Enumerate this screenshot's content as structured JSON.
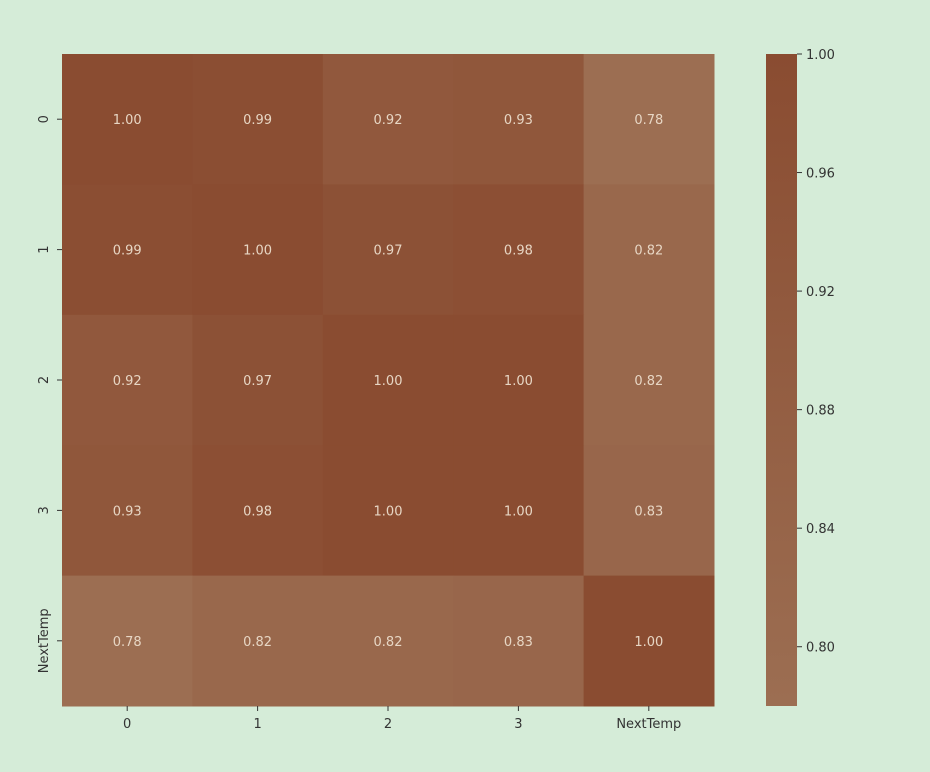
{
  "chart_data": {
    "type": "heatmap",
    "title": "",
    "xlabel": "",
    "ylabel": "",
    "x_categories": [
      "0",
      "1",
      "2",
      "3",
      "NextTemp"
    ],
    "y_categories": [
      "0",
      "1",
      "2",
      "3",
      "NextTemp"
    ],
    "values": [
      [
        1.0,
        0.99,
        0.92,
        0.93,
        0.78
      ],
      [
        0.99,
        1.0,
        0.97,
        0.98,
        0.82
      ],
      [
        0.92,
        0.97,
        1.0,
        1.0,
        0.82
      ],
      [
        0.93,
        0.98,
        1.0,
        1.0,
        0.83
      ],
      [
        0.78,
        0.82,
        0.82,
        0.83,
        1.0
      ]
    ],
    "value_format": "0.00",
    "colorbar": {
      "vmin": 0.78,
      "vmax": 1.0,
      "ticks": [
        "1.00",
        "0.96",
        "0.92",
        "0.88",
        "0.84",
        "0.80"
      ],
      "tick_values": [
        1.0,
        0.96,
        0.92,
        0.88,
        0.84,
        0.8
      ],
      "color_low": "#9c6e52",
      "color_high": "#8a4c31"
    },
    "annotation_color": "#e7d6c4",
    "background": "#d5ecd8",
    "text_color": "#333333"
  }
}
